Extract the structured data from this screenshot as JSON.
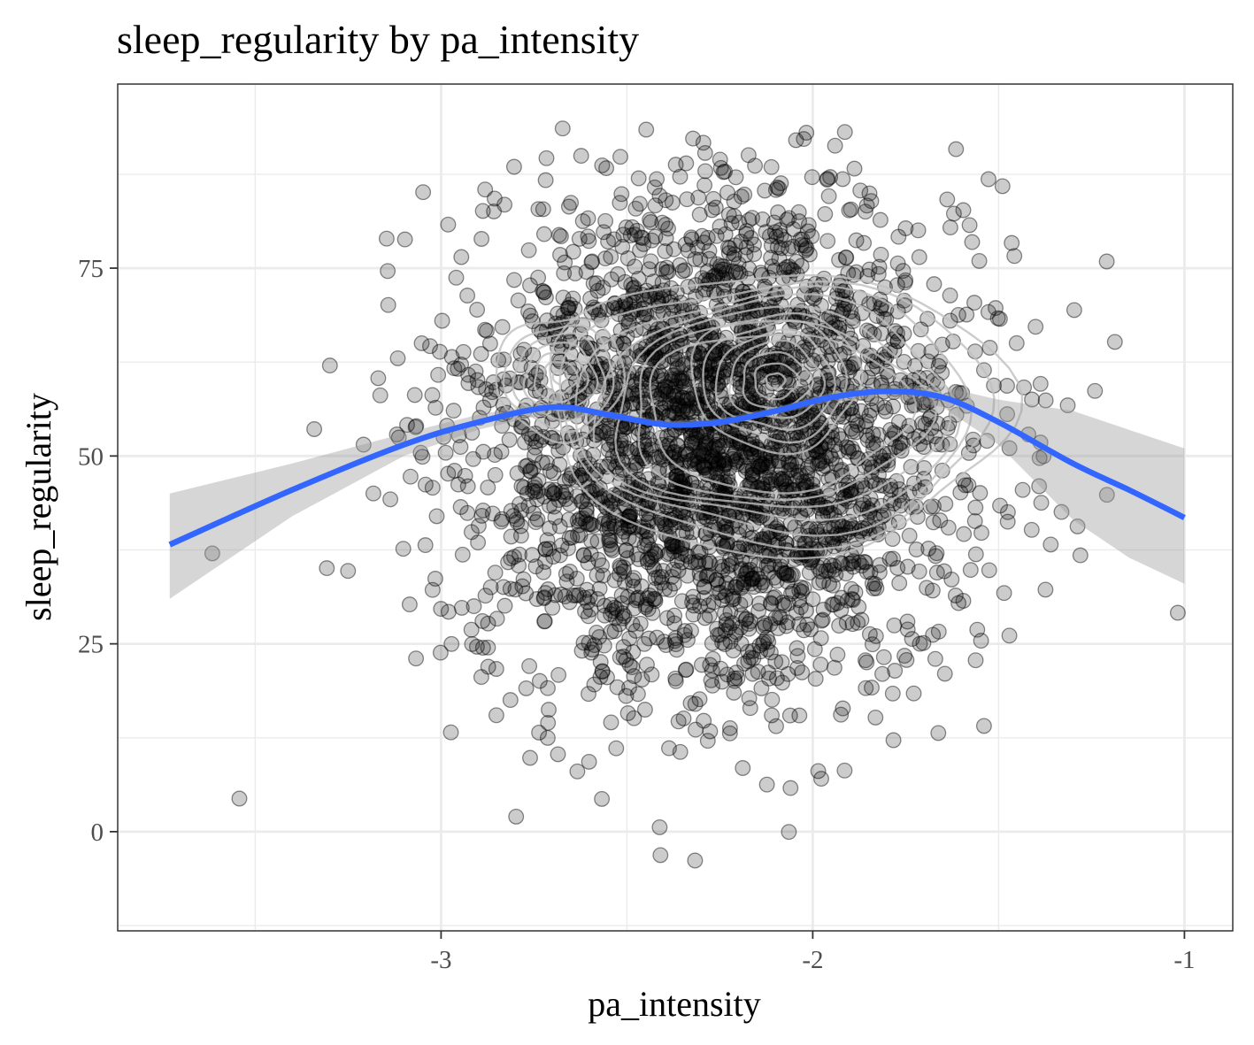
{
  "chart_data": {
    "type": "scatter",
    "title": "sleep_regularity by pa_intensity",
    "xlabel": "pa_intensity",
    "ylabel": "sleep_regularity",
    "xlim": [
      -3.87,
      -0.87
    ],
    "ylim": [
      -13.2,
      99.5
    ],
    "x_ticks": [
      -3,
      -2,
      -1
    ],
    "x_tick_labels": [
      "-3",
      "-2",
      "-1"
    ],
    "y_ticks": [
      0,
      25,
      50,
      75
    ],
    "y_tick_labels": [
      "0",
      "25",
      "50",
      "75"
    ],
    "grid": true,
    "layers": [
      "points",
      "density_contours",
      "loess_smooth_with_ci"
    ],
    "point_cloud": {
      "n_points": 3000,
      "center": [
        -2.25,
        52
      ],
      "sd": [
        0.33,
        17
      ],
      "min": [
        -3.73,
        -10.5
      ],
      "max": [
        -1.0,
        93.8
      ],
      "opacity": 0.2
    },
    "smooth": {
      "x": [
        -3.73,
        -3.4,
        -3.1,
        -2.9,
        -2.7,
        -2.55,
        -2.4,
        -2.25,
        -2.1,
        -1.95,
        -1.8,
        -1.65,
        -1.5,
        -1.3,
        -1.15,
        -1.0
      ],
      "y": [
        38.2,
        45.5,
        51.5,
        54.5,
        56.5,
        55.5,
        54.2,
        54.5,
        56.0,
        57.8,
        58.6,
        57.8,
        54.5,
        49.0,
        45.5,
        41.8
      ],
      "lower": [
        31.0,
        42.0,
        50.0,
        53.5,
        55.8,
        55.0,
        53.8,
        54.0,
        55.5,
        57.2,
        57.8,
        56.5,
        51.5,
        41.5,
        36.5,
        33.0
      ],
      "upper": [
        45.0,
        49.0,
        53.0,
        55.5,
        57.2,
        56.0,
        54.6,
        55.0,
        56.5,
        58.4,
        59.4,
        59.2,
        57.5,
        56.0,
        53.5,
        51.0
      ]
    },
    "colors": {
      "points": "#000000",
      "smooth_line": "#3366FF",
      "ci_band": "#999999",
      "contour": "#bfbfbf",
      "grid": "#ebebeb",
      "panel_border": "#333333"
    }
  }
}
